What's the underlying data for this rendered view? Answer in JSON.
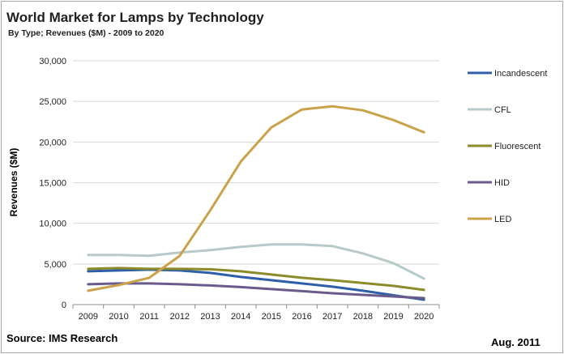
{
  "title": "World Market for Lamps by Technology",
  "subtitle": "By Type; Revenues ($M)  - 2009 to 2020",
  "source": "Source: IMS Research",
  "date": "Aug. 2011",
  "chart_data": {
    "type": "line",
    "title": "World Market for Lamps by Technology",
    "subtitle": "By Type; Revenues ($M)  - 2009 to 2020",
    "xlabel": "",
    "ylabel": "Revenues ($M)",
    "ylim": [
      0,
      30000
    ],
    "yticks": [
      0,
      5000,
      10000,
      15000,
      20000,
      25000,
      30000
    ],
    "ytick_labels": [
      "0",
      "5,000",
      "10,000",
      "15,000",
      "20,000",
      "25,000",
      "30,000"
    ],
    "grid": true,
    "legend_position": "right",
    "categories": [
      "2009",
      "2010",
      "2011",
      "2012",
      "2013",
      "2014",
      "2015",
      "2016",
      "2017",
      "2018",
      "2019",
      "2020"
    ],
    "series": [
      {
        "name": "Incandescent",
        "color": "#2e5fa8",
        "values": [
          4100,
          4200,
          4300,
          4200,
          3900,
          3400,
          3000,
          2600,
          2200,
          1700,
          1150,
          600
        ]
      },
      {
        "name": "CFL",
        "color": "#b8c9c9",
        "values": [
          6100,
          6100,
          6000,
          6400,
          6700,
          7100,
          7400,
          7400,
          7200,
          6300,
          5100,
          3200
        ]
      },
      {
        "name": "Fluorescent",
        "color": "#8b8b2a",
        "values": [
          4400,
          4500,
          4400,
          4400,
          4350,
          4100,
          3700,
          3300,
          3000,
          2650,
          2300,
          1800
        ]
      },
      {
        "name": "HID",
        "color": "#6a5b8c",
        "values": [
          2500,
          2600,
          2600,
          2500,
          2350,
          2150,
          1900,
          1650,
          1400,
          1200,
          1000,
          800
        ]
      },
      {
        "name": "LED",
        "color": "#c9a24a",
        "values": [
          1700,
          2400,
          3300,
          6000,
          11600,
          17600,
          21800,
          24000,
          24400,
          23900,
          22700,
          21200
        ]
      }
    ]
  }
}
